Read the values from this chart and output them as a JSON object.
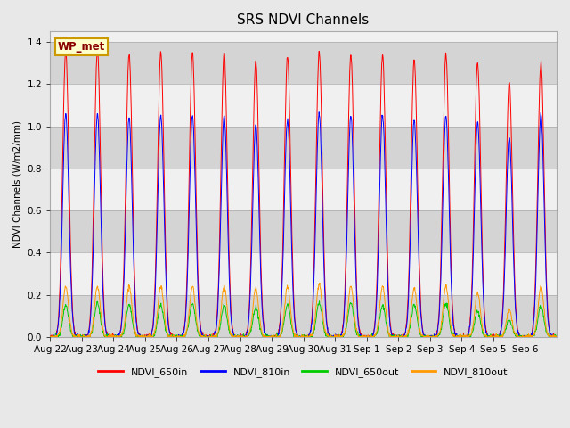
{
  "title": "SRS NDVI Channels",
  "ylabel": "NDVI Channels (W/m2/mm)",
  "xlabel": "",
  "station_label": "WP_met",
  "ylim": [
    0,
    1.45
  ],
  "colors": {
    "NDVI_650in": "#ff0000",
    "NDVI_810in": "#0000ff",
    "NDVI_650out": "#00cc00",
    "NDVI_810out": "#ff9900"
  },
  "legend_labels": [
    "NDVI_650in",
    "NDVI_810in",
    "NDVI_650out",
    "NDVI_810out"
  ],
  "x_tick_labels": [
    "Aug 22",
    "Aug 23",
    "Aug 24",
    "Aug 25",
    "Aug 26",
    "Aug 27",
    "Aug 28",
    "Aug 29",
    "Aug 30",
    "Aug 31",
    "Sep 1",
    "Sep 2",
    "Sep 3",
    "Sep 4",
    "Sep 5",
    "Sep 6"
  ],
  "n_days": 16,
  "points_per_day": 96,
  "title_fontsize": 11,
  "axis_fontsize": 7.5,
  "legend_fontsize": 8,
  "peak_650in": [
    1.36,
    1.36,
    1.34,
    1.35,
    1.35,
    1.35,
    1.31,
    1.33,
    1.35,
    1.34,
    1.34,
    1.32,
    1.34,
    1.3,
    1.21,
    1.3
  ],
  "peak_810in": [
    1.06,
    1.06,
    1.04,
    1.05,
    1.05,
    1.05,
    1.01,
    1.03,
    1.06,
    1.05,
    1.05,
    1.03,
    1.05,
    1.02,
    0.95,
    1.06
  ],
  "peak_650out": [
    0.15,
    0.16,
    0.15,
    0.15,
    0.16,
    0.15,
    0.14,
    0.15,
    0.16,
    0.16,
    0.15,
    0.15,
    0.16,
    0.12,
    0.08,
    0.15
  ],
  "peak_810out": [
    0.24,
    0.24,
    0.24,
    0.24,
    0.24,
    0.24,
    0.23,
    0.24,
    0.25,
    0.24,
    0.24,
    0.23,
    0.24,
    0.21,
    0.13,
    0.24
  ]
}
